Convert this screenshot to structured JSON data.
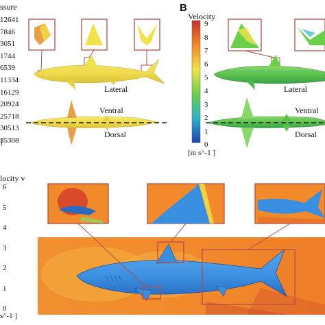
{
  "panel_a": {
    "legend_title": "ssure",
    "legend_ticks": [
      "12641",
      "7846",
      "3051",
      "1744",
      "6539",
      "11334",
      "16129",
      "20924",
      "25718",
      "30513",
      "35308"
    ],
    "legend_unit": "]",
    "labels": {
      "lateral": "Lateral",
      "ventral": "Ventral",
      "dorsal": "Dorsal"
    },
    "colors": {
      "body": "#f2e24a",
      "inset_border": "#b0504a"
    }
  },
  "panel_b": {
    "panel_letter": "B",
    "legend_title": "Velocity",
    "legend_ticks": [
      "9",
      "8",
      "7",
      "6",
      "5",
      "4",
      "3",
      "2",
      "1",
      "0"
    ],
    "legend_unit": "[m s^-1 ]",
    "labels": {
      "lateral": "Lateral",
      "ventral": "Ventral",
      "dorsal": "Dorsal"
    },
    "colors": {
      "body": "#6ccf4a",
      "scale_top": "#d43a2a",
      "scale_bottom": "#1f3fb0"
    }
  },
  "panel_c": {
    "legend_title": "locity v",
    "legend_ticks": [
      "6",
      "5",
      "4",
      "3",
      "2",
      "1",
      "0"
    ],
    "legend_unit": "s^-1 ]",
    "colors": {
      "field": "#f08a2a",
      "body": "#3a8ee0",
      "inset_border": "#b0504a"
    }
  }
}
